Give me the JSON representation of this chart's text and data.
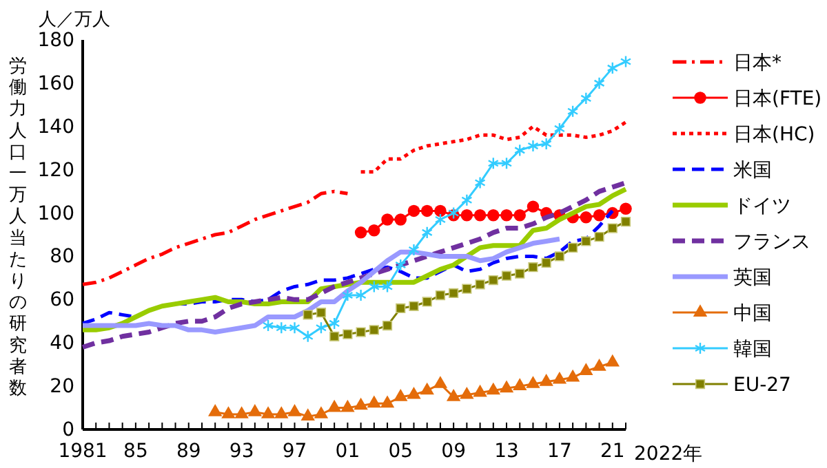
{
  "chart_data": {
    "type": "line",
    "ylabel": "労働力人口一万人当たりの研究者数",
    "xlabel": "2022年",
    "annotations": [
      "人／万人"
    ],
    "xlim": [
      1981,
      2022
    ],
    "ylim": [
      0,
      180
    ],
    "yticks": [
      0,
      20,
      40,
      60,
      80,
      100,
      120,
      140,
      160,
      180
    ],
    "xticks": [
      1981,
      {
        "value": 1982,
        "label": null
      },
      {
        "value": 1983,
        "label": null
      },
      {
        "value": 1984,
        "label": null
      },
      {
        "value": 1985,
        "label": "85"
      },
      {
        "value": 1986,
        "label": null
      },
      {
        "value": 1987,
        "label": null
      },
      {
        "value": 1988,
        "label": null
      },
      {
        "value": 1989,
        "label": "89"
      },
      {
        "value": 1990,
        "label": null
      },
      {
        "value": 1991,
        "label": null
      },
      {
        "value": 1992,
        "label": null
      },
      {
        "value": 1993,
        "label": "93"
      },
      {
        "value": 1994,
        "label": null
      },
      {
        "value": 1995,
        "label": null
      },
      {
        "value": 1996,
        "label": null
      },
      {
        "value": 1997,
        "label": "97"
      },
      {
        "value": 1998,
        "label": null
      },
      {
        "value": 1999,
        "label": null
      },
      {
        "value": 2000,
        "label": null
      },
      {
        "value": 2001,
        "label": "01"
      },
      {
        "value": 2002,
        "label": null
      },
      {
        "value": 2003,
        "label": null
      },
      {
        "value": 2004,
        "label": null
      },
      {
        "value": 2005,
        "label": "05"
      },
      {
        "value": 2006,
        "label": null
      },
      {
        "value": 2007,
        "label": null
      },
      {
        "value": 2008,
        "label": null
      },
      {
        "value": 2009,
        "label": "09"
      },
      {
        "value": 2010,
        "label": null
      },
      {
        "value": 2011,
        "label": null
      },
      {
        "value": 2012,
        "label": null
      },
      {
        "value": 2013,
        "label": "13"
      },
      {
        "value": 2014,
        "label": null
      },
      {
        "value": 2015,
        "label": null
      },
      {
        "value": 2016,
        "label": null
      },
      {
        "value": 2017,
        "label": "17"
      },
      {
        "value": 2018,
        "label": null
      },
      {
        "value": 2019,
        "label": null
      },
      {
        "value": 2020,
        "label": null
      },
      {
        "value": 2021,
        "label": "21"
      },
      {
        "value": 2022,
        "label": null
      }
    ],
    "grid": false,
    "legend": "right",
    "series": [
      {
        "name": "日本*",
        "color": "#ff0000",
        "line_style": "dashdot",
        "marker": "none",
        "x": [
          1981,
          1982,
          1983,
          1984,
          1985,
          1986,
          1987,
          1988,
          1989,
          1990,
          1991,
          1992,
          1993,
          1994,
          1995,
          1996,
          1997,
          1998,
          1999,
          2000,
          2001
        ],
        "values": [
          67,
          68,
          70,
          73,
          76,
          79,
          81,
          84,
          86,
          88,
          90,
          91,
          94,
          97,
          99,
          101,
          103,
          105,
          109,
          110,
          109
        ]
      },
      {
        "name": "日本(FTE)",
        "color": "#ff0000",
        "line_style": "solid",
        "marker": "circle",
        "x": [
          2002,
          2003,
          2004,
          2005,
          2006,
          2007,
          2008,
          2009,
          2010,
          2011,
          2012,
          2013,
          2014,
          2015,
          2016,
          2017,
          2018,
          2019,
          2020,
          2021,
          2022
        ],
        "values": [
          91,
          92,
          97,
          97,
          101,
          101,
          101,
          99,
          99,
          99,
          99,
          99,
          99,
          103,
          100,
          99,
          98,
          98,
          99,
          100,
          102
        ]
      },
      {
        "name": "日本(HC)",
        "color": "#ff0000",
        "line_style": "dotted",
        "marker": "none",
        "x": [
          2002,
          2003,
          2004,
          2005,
          2006,
          2007,
          2008,
          2009,
          2010,
          2011,
          2012,
          2013,
          2014,
          2015,
          2016,
          2017,
          2018,
          2019,
          2020,
          2021,
          2022
        ],
        "values": [
          119,
          119,
          125,
          125,
          129,
          131,
          132,
          133,
          134,
          136,
          136,
          134,
          135,
          140,
          136,
          136,
          136,
          135,
          136,
          138,
          142
        ]
      },
      {
        "name": "米国",
        "color": "#0000ff",
        "line_style": "dashed",
        "marker": "none",
        "x": [
          1981,
          1982,
          1983,
          1984,
          1985,
          1986,
          1987,
          1988,
          1989,
          1990,
          1991,
          1992,
          1993,
          1994,
          1995,
          1996,
          1997,
          1998,
          1999,
          2000,
          2001,
          2002,
          2003,
          2004,
          2005,
          2006,
          2007,
          2008,
          2009,
          2010,
          2011,
          2012,
          2013,
          2014,
          2015,
          2016,
          2017,
          2018,
          2019,
          2020,
          2021
        ],
        "values": [
          49,
          51,
          54,
          53,
          52,
          55,
          57,
          58,
          58,
          59,
          59,
          60,
          60,
          59,
          60,
          64,
          66,
          67,
          69,
          69,
          70,
          72,
          74,
          75,
          73,
          70,
          70,
          73,
          76,
          73,
          74,
          77,
          79,
          80,
          80,
          79,
          82,
          87,
          88,
          94,
          101
        ]
      },
      {
        "name": "ドイツ",
        "color": "#99cc00",
        "line_style": "solid",
        "marker": "none",
        "x": [
          1981,
          1982,
          1983,
          1984,
          1985,
          1986,
          1987,
          1988,
          1989,
          1990,
          1991,
          1992,
          1993,
          1994,
          1995,
          1996,
          1997,
          1998,
          1999,
          2000,
          2001,
          2002,
          2003,
          2004,
          2005,
          2006,
          2007,
          2008,
          2009,
          2010,
          2011,
          2012,
          2013,
          2014,
          2015,
          2016,
          2017,
          2018,
          2019,
          2020,
          2021,
          2022
        ],
        "values": [
          46,
          46,
          47,
          49,
          52,
          55,
          57,
          58,
          59,
          60,
          61,
          59,
          59,
          58,
          58,
          59,
          59,
          59,
          65,
          66,
          67,
          68,
          68,
          68,
          68,
          68,
          71,
          74,
          76,
          80,
          84,
          85,
          85,
          85,
          92,
          93,
          97,
          100,
          103,
          104,
          108,
          111
        ]
      },
      {
        "name": "フランス",
        "color": "#7030a0",
        "line_style": "dashed",
        "marker": "none",
        "x": [
          1981,
          1982,
          1983,
          1984,
          1985,
          1986,
          1987,
          1988,
          1989,
          1990,
          1991,
          1992,
          1993,
          1994,
          1995,
          1996,
          1997,
          1998,
          1999,
          2000,
          2001,
          2002,
          2003,
          2004,
          2005,
          2006,
          2007,
          2008,
          2009,
          2010,
          2011,
          2012,
          2013,
          2014,
          2015,
          2016,
          2017,
          2018,
          2019,
          2020,
          2021,
          2022
        ],
        "values": [
          38,
          40,
          41,
          43,
          44,
          45,
          47,
          49,
          50,
          50,
          52,
          56,
          58,
          59,
          60,
          61,
          60,
          60,
          63,
          66,
          68,
          70,
          72,
          74,
          76,
          78,
          80,
          82,
          84,
          86,
          88,
          91,
          93,
          93,
          95,
          98,
          100,
          103,
          106,
          110,
          112,
          114
        ]
      },
      {
        "name": "英国",
        "color": "#9999ff",
        "line_style": "solid",
        "marker": "none",
        "x": [
          1981,
          1982,
          1983,
          1984,
          1985,
          1986,
          1987,
          1988,
          1989,
          1990,
          1991,
          1992,
          1993,
          1994,
          1995,
          1996,
          1997,
          1998,
          1999,
          2000,
          2001,
          2002,
          2003,
          2004,
          2005,
          2006,
          2007,
          2008,
          2009,
          2010,
          2011,
          2012,
          2013,
          2014,
          2015,
          2016,
          2017
        ],
        "values": [
          48,
          48,
          48,
          48,
          48,
          49,
          48,
          48,
          46,
          46,
          45,
          46,
          47,
          48,
          52,
          52,
          52,
          55,
          59,
          59,
          64,
          68,
          73,
          78,
          82,
          82,
          81,
          80,
          80,
          80,
          78,
          79,
          82,
          84,
          86,
          87,
          88
        ]
      },
      {
        "name": "中国",
        "color": "#e46c0a",
        "line_style": "solid",
        "marker": "triangle",
        "x": [
          1991,
          1992,
          1993,
          1994,
          1995,
          1996,
          1997,
          1998,
          1999,
          2000,
          2001,
          2002,
          2003,
          2004,
          2005,
          2006,
          2007,
          2008,
          2009,
          2010,
          2011,
          2012,
          2013,
          2014,
          2015,
          2016,
          2017,
          2018,
          2019,
          2020,
          2021
        ],
        "values": [
          8,
          7,
          7,
          8,
          7,
          7,
          8,
          6,
          7,
          10,
          10,
          11,
          12,
          12,
          15,
          16,
          18,
          21,
          15,
          16,
          17,
          18,
          19,
          20,
          21,
          22,
          23,
          24,
          27,
          29,
          31
        ]
      },
      {
        "name": "韓国",
        "color": "#33ccff",
        "line_style": "solid",
        "marker": "cross",
        "x": [
          1995,
          1996,
          1997,
          1998,
          1999,
          2000,
          2001,
          2002,
          2003,
          2004,
          2005,
          2006,
          2007,
          2008,
          2009,
          2010,
          2011,
          2012,
          2013,
          2014,
          2015,
          2016,
          2017,
          2018,
          2019,
          2020,
          2021,
          2022
        ],
        "values": [
          48,
          47,
          47,
          43,
          47,
          49,
          62,
          62,
          66,
          66,
          76,
          83,
          91,
          97,
          100,
          106,
          114,
          123,
          123,
          129,
          131,
          132,
          139,
          147,
          153,
          160,
          167,
          170
        ]
      },
      {
        "name": "EU-27",
        "color": "#808000",
        "line_style": "solid",
        "marker": "square",
        "x": [
          1998,
          1999,
          2000,
          2001,
          2002,
          2003,
          2004,
          2005,
          2006,
          2007,
          2008,
          2009,
          2010,
          2011,
          2012,
          2013,
          2014,
          2015,
          2016,
          2017,
          2018,
          2019,
          2020,
          2021,
          2022
        ],
        "values": [
          53,
          54,
          43,
          44,
          45,
          46,
          48,
          56,
          57,
          59,
          62,
          63,
          65,
          67,
          69,
          71,
          72,
          75,
          77,
          80,
          84,
          87,
          89,
          93,
          96
        ]
      }
    ]
  }
}
